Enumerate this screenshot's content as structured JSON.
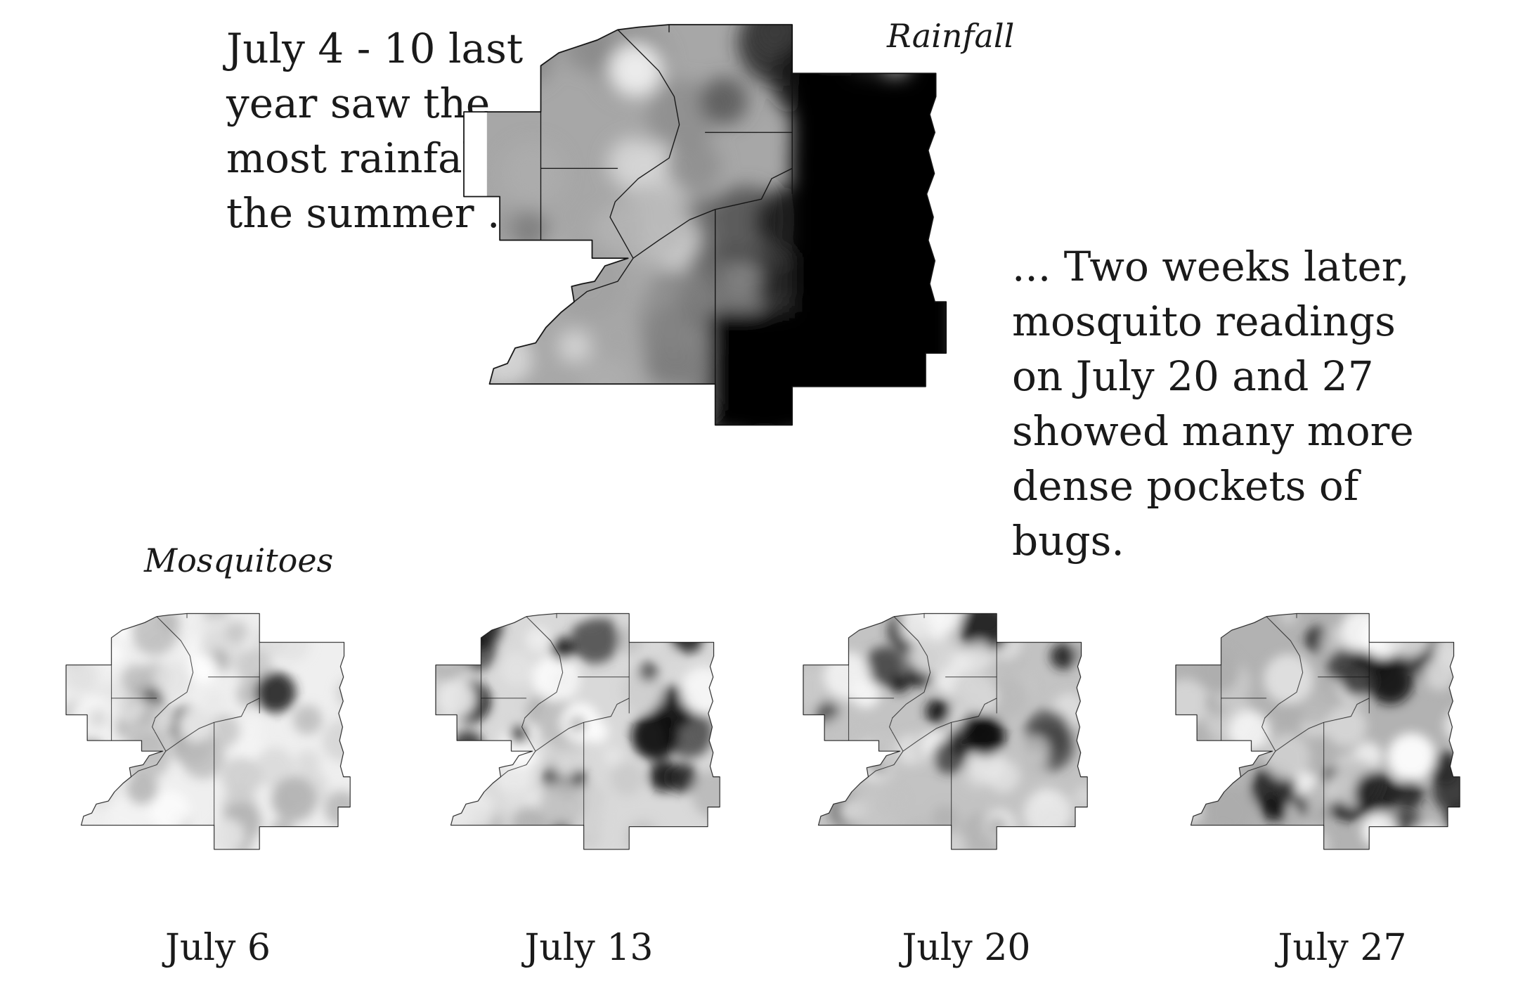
{
  "intro_text": "July 4 - 10 last year saw the most rainfall of the summer ...",
  "outro_text": "... Two weeks later, mosquito readings on July 20 and 27 showed many more dense pockets of bugs.",
  "rainfall_label": "Rainfall",
  "mosquitoes_label": "Mosquitoes",
  "rainfall_map": {
    "intensity": 0.8
  },
  "mosquito_maps": [
    {
      "date": "July 6",
      "intensity": 0.15
    },
    {
      "date": "July 13",
      "intensity": 0.35
    },
    {
      "date": "July 20",
      "intensity": 0.55
    },
    {
      "date": "July 27",
      "intensity": 0.7
    }
  ]
}
